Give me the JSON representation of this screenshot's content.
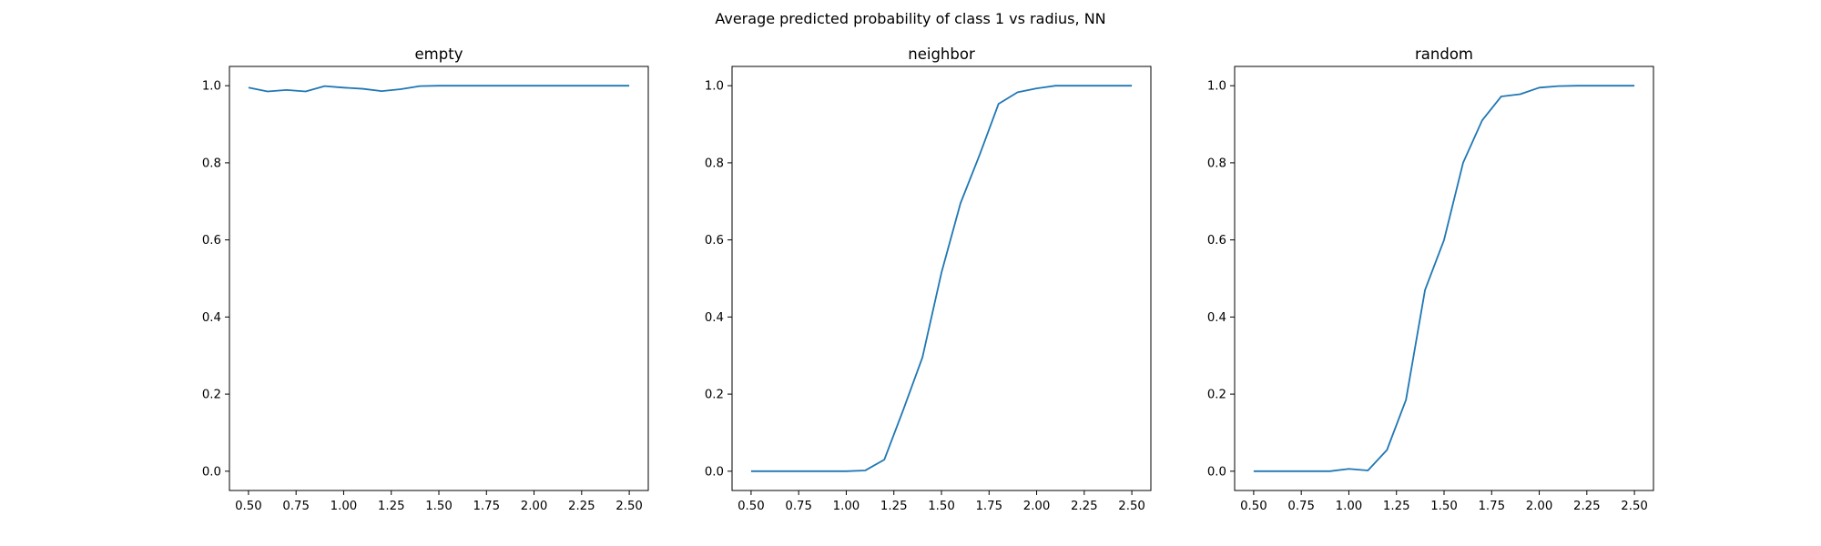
{
  "figure_title": "Average predicted probability of class 1 vs radius, NN",
  "colors": {
    "series": "#1f77b4",
    "axis": "#000000",
    "background": "#ffffff"
  },
  "chart_data": [
    {
      "type": "line",
      "title": "empty",
      "xlabel": "",
      "ylabel": "",
      "xlim": [
        0.4,
        2.6
      ],
      "ylim": [
        -0.05,
        1.05
      ],
      "xticks": [
        0.5,
        0.75,
        1.0,
        1.25,
        1.5,
        1.75,
        2.0,
        2.25,
        2.5
      ],
      "xtick_labels": [
        "0.50",
        "0.75",
        "1.00",
        "1.25",
        "1.50",
        "1.75",
        "2.00",
        "2.25",
        "2.50"
      ],
      "yticks": [
        0.0,
        0.2,
        0.4,
        0.6,
        0.8,
        1.0
      ],
      "ytick_labels": [
        "0.0",
        "0.2",
        "0.4",
        "0.6",
        "0.8",
        "1.0"
      ],
      "grid": false,
      "x": [
        0.5,
        0.6,
        0.7,
        0.8,
        0.9,
        1.0,
        1.1,
        1.2,
        1.3,
        1.4,
        1.5,
        1.6,
        1.7,
        1.8,
        1.9,
        2.0,
        2.1,
        2.2,
        2.3,
        2.4,
        2.5
      ],
      "series": [
        {
          "values": [
            0.995,
            0.985,
            0.989,
            0.985,
            0.999,
            0.995,
            0.992,
            0.986,
            0.991,
            0.999,
            1.0,
            1.0,
            1.0,
            1.0,
            1.0,
            1.0,
            1.0,
            1.0,
            1.0,
            1.0,
            1.0
          ]
        }
      ]
    },
    {
      "type": "line",
      "title": "neighbor",
      "xlabel": "",
      "ylabel": "",
      "xlim": [
        0.4,
        2.6
      ],
      "ylim": [
        -0.05,
        1.05
      ],
      "xticks": [
        0.5,
        0.75,
        1.0,
        1.25,
        1.5,
        1.75,
        2.0,
        2.25,
        2.5
      ],
      "xtick_labels": [
        "0.50",
        "0.75",
        "1.00",
        "1.25",
        "1.50",
        "1.75",
        "2.00",
        "2.25",
        "2.50"
      ],
      "yticks": [
        0.0,
        0.2,
        0.4,
        0.6,
        0.8,
        1.0
      ],
      "ytick_labels": [
        "0.0",
        "0.2",
        "0.4",
        "0.6",
        "0.8",
        "1.0"
      ],
      "grid": false,
      "x": [
        0.5,
        0.6,
        0.7,
        0.8,
        0.9,
        1.0,
        1.1,
        1.2,
        1.3,
        1.4,
        1.5,
        1.6,
        1.7,
        1.8,
        1.9,
        2.0,
        2.1,
        2.2,
        2.3,
        2.4,
        2.5
      ],
      "series": [
        {
          "values": [
            0.0,
            0.0,
            0.0,
            0.0,
            0.0,
            0.0,
            0.002,
            0.03,
            0.16,
            0.295,
            0.515,
            0.695,
            0.82,
            0.953,
            0.983,
            0.993,
            1.0,
            1.0,
            1.0,
            1.0,
            1.0
          ]
        }
      ]
    },
    {
      "type": "line",
      "title": "random",
      "xlabel": "",
      "ylabel": "",
      "xlim": [
        0.4,
        2.6
      ],
      "ylim": [
        -0.05,
        1.05
      ],
      "xticks": [
        0.5,
        0.75,
        1.0,
        1.25,
        1.5,
        1.75,
        2.0,
        2.25,
        2.5
      ],
      "xtick_labels": [
        "0.50",
        "0.75",
        "1.00",
        "1.25",
        "1.50",
        "1.75",
        "2.00",
        "2.25",
        "2.50"
      ],
      "yticks": [
        0.0,
        0.2,
        0.4,
        0.6,
        0.8,
        1.0
      ],
      "ytick_labels": [
        "0.0",
        "0.2",
        "0.4",
        "0.6",
        "0.8",
        "1.0"
      ],
      "grid": false,
      "x": [
        0.5,
        0.6,
        0.7,
        0.8,
        0.9,
        1.0,
        1.1,
        1.2,
        1.3,
        1.4,
        1.5,
        1.6,
        1.7,
        1.8,
        1.9,
        2.0,
        2.1,
        2.2,
        2.3,
        2.4,
        2.5
      ],
      "series": [
        {
          "values": [
            0.0,
            0.0,
            0.0,
            0.0,
            0.0,
            0.006,
            0.002,
            0.055,
            0.185,
            0.47,
            0.6,
            0.8,
            0.91,
            0.972,
            0.978,
            0.995,
            0.999,
            1.0,
            1.0,
            1.0,
            1.0
          ]
        }
      ]
    }
  ]
}
